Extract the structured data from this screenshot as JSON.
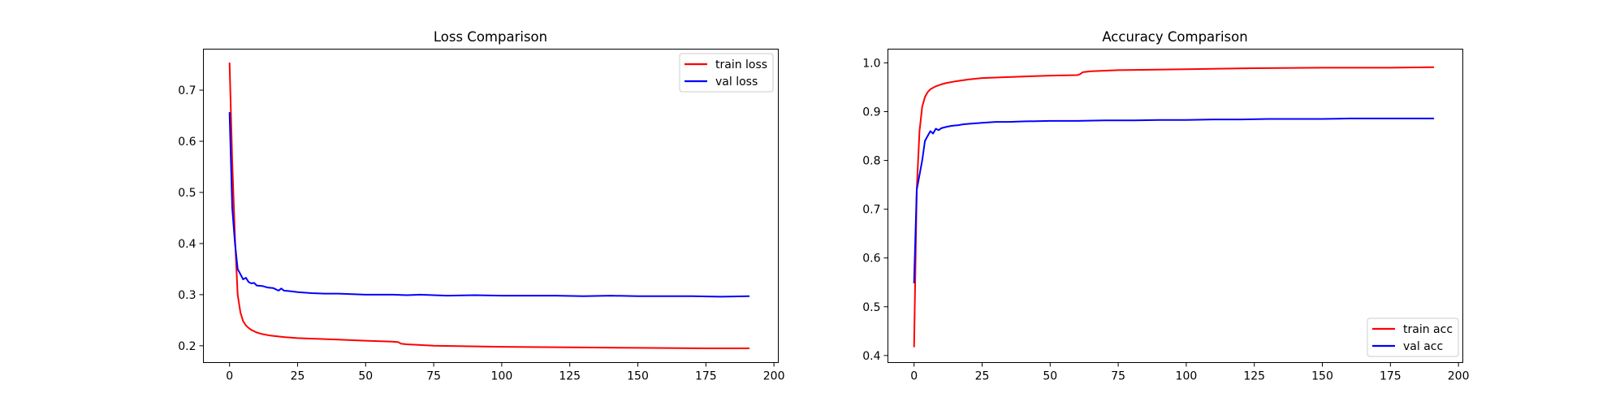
{
  "figure": {
    "background": "#ffffff"
  },
  "chart_data": [
    {
      "type": "line",
      "title": "Loss Comparison",
      "xlabel": "",
      "ylabel": "",
      "xlim": [
        -9.6,
        201.6
      ],
      "ylim": [
        0.1672,
        0.7803
      ],
      "xticks": [
        0,
        25,
        50,
        75,
        100,
        125,
        150,
        175,
        200
      ],
      "yticks": [
        0.2,
        0.3,
        0.4,
        0.5,
        0.6,
        0.7
      ],
      "grid": false,
      "legend": "top-right",
      "series": [
        {
          "name": "train loss",
          "color": "#ff0000",
          "x": [
            0,
            1,
            2,
            3,
            4,
            5,
            6,
            7,
            8,
            10,
            12,
            15,
            20,
            25,
            30,
            40,
            50,
            60,
            62,
            63,
            65,
            75,
            100,
            125,
            150,
            175,
            191
          ],
          "y": [
            0.754,
            0.56,
            0.41,
            0.3,
            0.265,
            0.248,
            0.24,
            0.235,
            0.231,
            0.226,
            0.223,
            0.22,
            0.217,
            0.215,
            0.214,
            0.212,
            0.21,
            0.208,
            0.207,
            0.204,
            0.203,
            0.2,
            0.198,
            0.197,
            0.196,
            0.195,
            0.195
          ]
        },
        {
          "name": "val loss",
          "color": "#0000ff",
          "x": [
            0,
            1,
            2,
            3,
            4,
            5,
            6,
            7,
            8,
            9,
            10,
            12,
            14,
            16,
            18,
            19,
            20,
            22,
            25,
            30,
            35,
            40,
            45,
            50,
            55,
            60,
            65,
            70,
            75,
            80,
            90,
            100,
            110,
            120,
            130,
            140,
            150,
            160,
            170,
            180,
            191
          ],
          "y": [
            0.657,
            0.47,
            0.4,
            0.35,
            0.34,
            0.33,
            0.333,
            0.325,
            0.322,
            0.323,
            0.318,
            0.317,
            0.314,
            0.313,
            0.308,
            0.312,
            0.308,
            0.307,
            0.305,
            0.303,
            0.302,
            0.302,
            0.301,
            0.3,
            0.3,
            0.3,
            0.299,
            0.3,
            0.299,
            0.298,
            0.299,
            0.298,
            0.298,
            0.298,
            0.297,
            0.298,
            0.297,
            0.297,
            0.297,
            0.296,
            0.297
          ]
        }
      ]
    },
    {
      "type": "line",
      "title": "Accuracy Comparison",
      "xlabel": "",
      "ylabel": "",
      "xlim": [
        -9.6,
        201.6
      ],
      "ylim": [
        0.3856,
        1.0282
      ],
      "xticks": [
        0,
        25,
        50,
        75,
        100,
        125,
        150,
        175,
        200
      ],
      "yticks": [
        0.4,
        0.5,
        0.6,
        0.7,
        0.8,
        0.9,
        1.0
      ],
      "grid": false,
      "legend": "bottom-right",
      "series": [
        {
          "name": "train acc",
          "color": "#ff0000",
          "x": [
            0,
            1,
            2,
            3,
            4,
            5,
            6,
            8,
            10,
            12,
            15,
            20,
            25,
            30,
            40,
            50,
            60,
            61,
            62,
            65,
            75,
            100,
            125,
            150,
            175,
            191
          ],
          "y": [
            0.417,
            0.74,
            0.86,
            0.91,
            0.93,
            0.94,
            0.946,
            0.952,
            0.956,
            0.959,
            0.962,
            0.966,
            0.969,
            0.97,
            0.972,
            0.974,
            0.975,
            0.977,
            0.981,
            0.983,
            0.985,
            0.987,
            0.989,
            0.99,
            0.99,
            0.991
          ]
        },
        {
          "name": "val acc",
          "color": "#0000ff",
          "x": [
            0,
            1,
            2,
            3,
            4,
            5,
            6,
            7,
            8,
            9,
            10,
            12,
            14,
            16,
            18,
            20,
            25,
            30,
            35,
            40,
            50,
            60,
            70,
            80,
            90,
            100,
            110,
            120,
            130,
            140,
            150,
            160,
            170,
            180,
            191
          ],
          "y": [
            0.548,
            0.74,
            0.77,
            0.8,
            0.84,
            0.85,
            0.86,
            0.855,
            0.865,
            0.862,
            0.866,
            0.869,
            0.871,
            0.872,
            0.874,
            0.875,
            0.877,
            0.879,
            0.879,
            0.88,
            0.881,
            0.881,
            0.882,
            0.882,
            0.883,
            0.883,
            0.884,
            0.884,
            0.885,
            0.885,
            0.885,
            0.886,
            0.886,
            0.886,
            0.886
          ]
        }
      ]
    }
  ]
}
